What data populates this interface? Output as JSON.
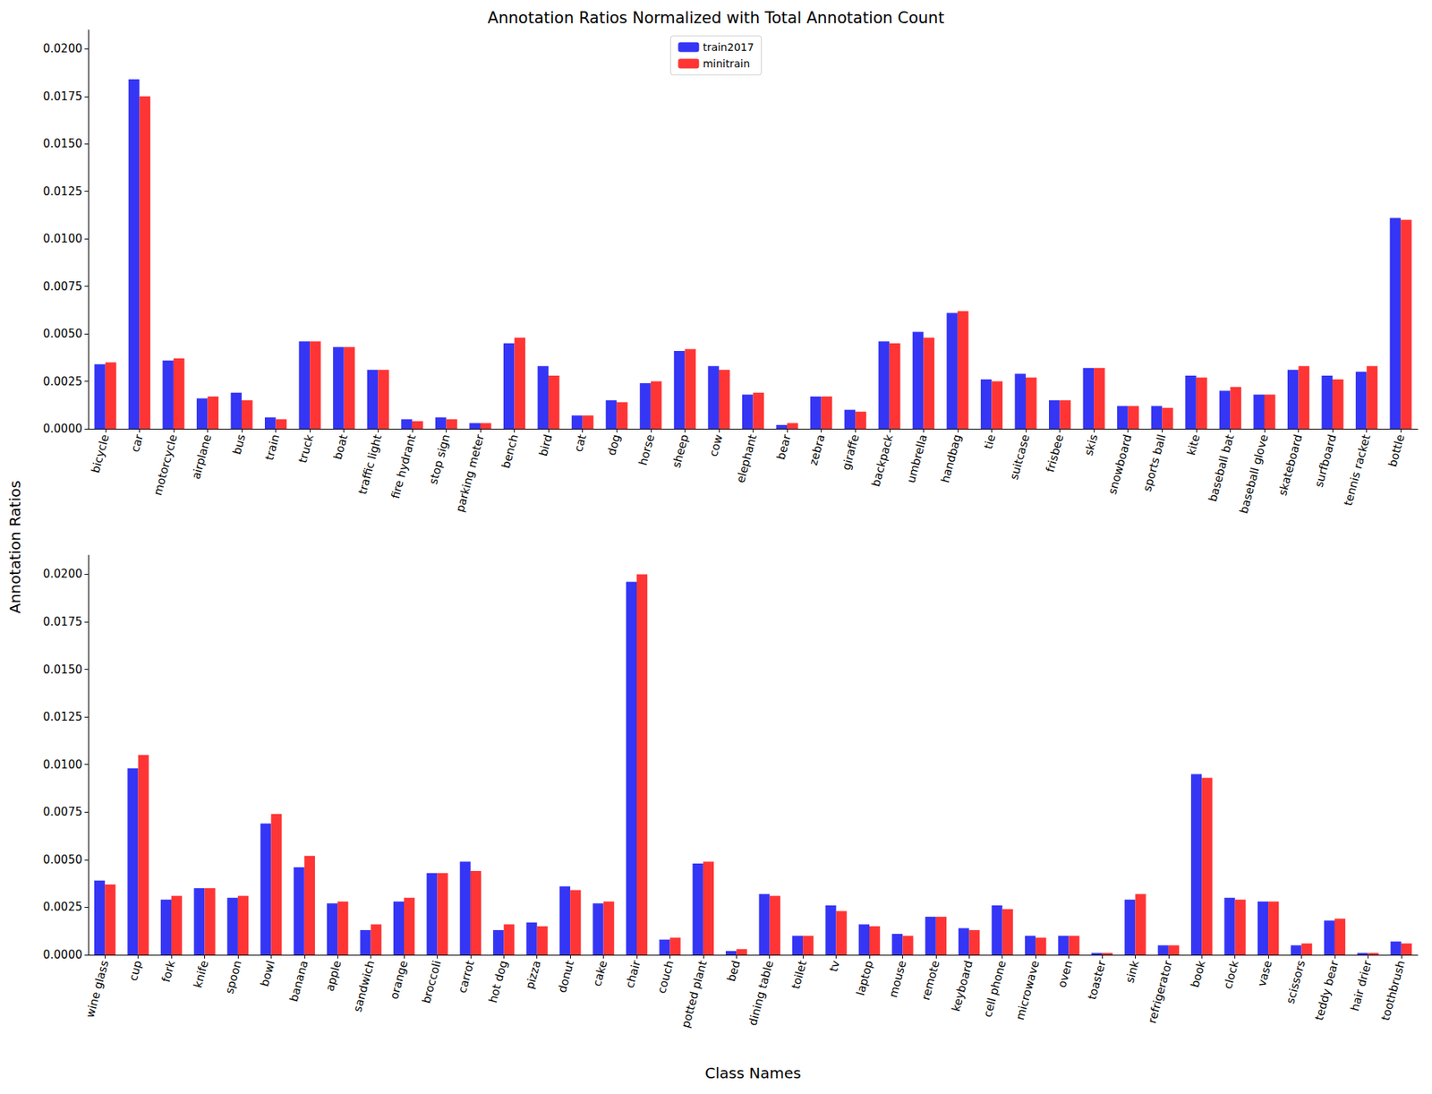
{
  "chart_data": [
    {
      "type": "bar",
      "title": "Annotation Ratios Normalized with Total Annotation Count",
      "ylabel": "Annotation Ratios",
      "legend": "upper center",
      "grid": false,
      "categories": [
        "bicycle",
        "car",
        "motorcycle",
        "airplane",
        "bus",
        "train",
        "truck",
        "boat",
        "traffic light",
        "fire hydrant",
        "stop sign",
        "parking meter",
        "bench",
        "bird",
        "cat",
        "dog",
        "horse",
        "sheep",
        "cow",
        "elephant",
        "bear",
        "zebra",
        "giraffe",
        "backpack",
        "umbrella",
        "handbag",
        "tie",
        "suitcase",
        "frisbee",
        "skis",
        "snowboard",
        "sports ball",
        "kite",
        "baseball bat",
        "baseball glove",
        "skateboard",
        "surfboard",
        "tennis racket",
        "bottle"
      ],
      "series": [
        {
          "name": "train2017",
          "color": "#3535f5",
          "values": [
            0.0034,
            0.0184,
            0.0036,
            0.0016,
            0.0019,
            0.0006,
            0.0046,
            0.0043,
            0.0031,
            0.0005,
            0.0006,
            0.0003,
            0.0045,
            0.0033,
            0.0007,
            0.0015,
            0.0024,
            0.0041,
            0.0033,
            0.0018,
            0.0002,
            0.0017,
            0.001,
            0.0046,
            0.0051,
            0.0061,
            0.0026,
            0.0029,
            0.0015,
            0.0032,
            0.0012,
            0.0012,
            0.0028,
            0.002,
            0.0018,
            0.0031,
            0.0028,
            0.003,
            0.0111
          ]
        },
        {
          "name": "minitrain",
          "color": "#ff3535",
          "values": [
            0.0035,
            0.0175,
            0.0037,
            0.0017,
            0.0015,
            0.0005,
            0.0046,
            0.0043,
            0.0031,
            0.0004,
            0.0005,
            0.0003,
            0.0048,
            0.0028,
            0.0007,
            0.0014,
            0.0025,
            0.0042,
            0.0031,
            0.0019,
            0.0003,
            0.0017,
            0.0009,
            0.0045,
            0.0048,
            0.0062,
            0.0025,
            0.0027,
            0.0015,
            0.0032,
            0.0012,
            0.0011,
            0.0027,
            0.0022,
            0.0018,
            0.0033,
            0.0026,
            0.0033,
            0.011
          ]
        }
      ],
      "ylim": [
        0,
        0.021
      ],
      "yticks": [
        {
          "value": 0,
          "label": "0.0000"
        },
        {
          "value": 0.0025,
          "label": "0.0025"
        },
        {
          "value": 0.005,
          "label": "0.0050"
        },
        {
          "value": 0.0075,
          "label": "0.0075"
        },
        {
          "value": 0.01,
          "label": "0.0100"
        },
        {
          "value": 0.0125,
          "label": "0.0125"
        },
        {
          "value": 0.015,
          "label": "0.0150"
        },
        {
          "value": 0.0175,
          "label": "0.0175"
        },
        {
          "value": 0.02,
          "label": "0.0200"
        }
      ]
    },
    {
      "type": "bar",
      "xlabel": "Class Names",
      "grid": false,
      "categories": [
        "wine glass",
        "cup",
        "fork",
        "knife",
        "spoon",
        "bowl",
        "banana",
        "apple",
        "sandwich",
        "orange",
        "broccoli",
        "carrot",
        "hot dog",
        "pizza",
        "donut",
        "cake",
        "chair",
        "couch",
        "potted plant",
        "bed",
        "dining table",
        "toilet",
        "tv",
        "laptop",
        "mouse",
        "remote",
        "keyboard",
        "cell phone",
        "microwave",
        "oven",
        "toaster",
        "sink",
        "refrigerator",
        "book",
        "clock",
        "vase",
        "scissors",
        "teddy bear",
        "hair drier",
        "toothbrush"
      ],
      "series": [
        {
          "name": "train2017",
          "color": "#3535f5",
          "values": [
            0.0039,
            0.0098,
            0.0029,
            0.0035,
            0.003,
            0.0069,
            0.0046,
            0.0027,
            0.0013,
            0.0028,
            0.0043,
            0.0049,
            0.0013,
            0.0017,
            0.0036,
            0.0027,
            0.0196,
            0.0008,
            0.0048,
            0.0002,
            0.0032,
            0.001,
            0.0026,
            0.0016,
            0.0011,
            0.002,
            0.0014,
            0.0026,
            0.001,
            0.001,
            0.0001,
            0.0029,
            0.0005,
            0.0095,
            0.003,
            0.0028,
            0.0005,
            0.0018,
            0.0001,
            0.0007
          ]
        },
        {
          "name": "minitrain",
          "color": "#ff3535",
          "values": [
            0.0037,
            0.0105,
            0.0031,
            0.0035,
            0.0031,
            0.0074,
            0.0052,
            0.0028,
            0.0016,
            0.003,
            0.0043,
            0.0044,
            0.0016,
            0.0015,
            0.0034,
            0.0028,
            0.02,
            0.0009,
            0.0049,
            0.0003,
            0.0031,
            0.001,
            0.0023,
            0.0015,
            0.001,
            0.002,
            0.0013,
            0.0024,
            0.0009,
            0.001,
            0.0001,
            0.0032,
            0.0005,
            0.0093,
            0.0029,
            0.0028,
            0.0006,
            0.0019,
            0.0001,
            0.0006
          ]
        }
      ],
      "ylim": [
        0,
        0.021
      ],
      "yticks": [
        {
          "value": 0,
          "label": "0.0000"
        },
        {
          "value": 0.0025,
          "label": "0.0025"
        },
        {
          "value": 0.005,
          "label": "0.0050"
        },
        {
          "value": 0.0075,
          "label": "0.0075"
        },
        {
          "value": 0.01,
          "label": "0.0100"
        },
        {
          "value": 0.0125,
          "label": "0.0125"
        },
        {
          "value": 0.015,
          "label": "0.0150"
        },
        {
          "value": 0.0175,
          "label": "0.0175"
        },
        {
          "value": 0.02,
          "label": "0.0200"
        }
      ]
    }
  ]
}
